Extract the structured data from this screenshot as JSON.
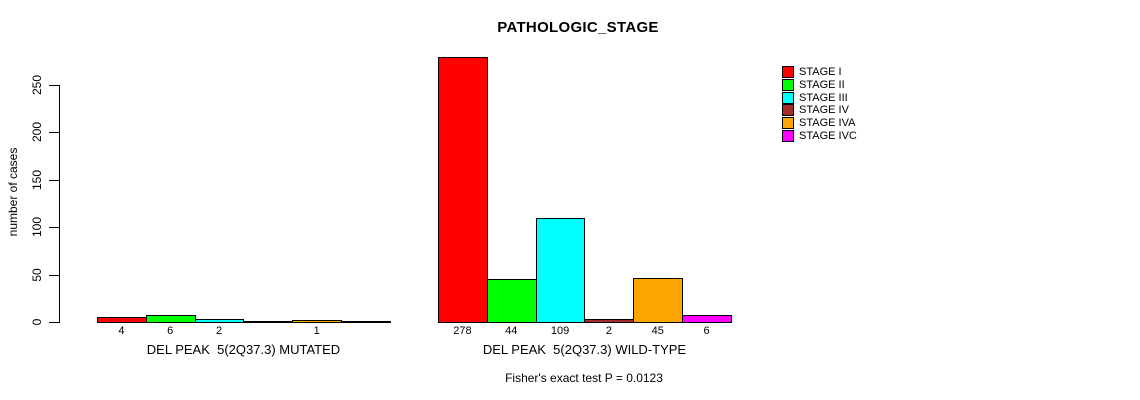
{
  "chart_data": {
    "type": "bar",
    "title": "PATHOLOGIC_STAGE",
    "ylabel": "number of cases",
    "yticks": [
      0,
      50,
      100,
      150,
      200,
      250
    ],
    "ylim": [
      0,
      280
    ],
    "grid": false,
    "legend_position": "right",
    "categories": [
      "STAGE I",
      "STAGE II",
      "STAGE III",
      "STAGE IV",
      "STAGE IVA",
      "STAGE IVC"
    ],
    "series_colors": [
      "#FF0000",
      "#00FF00",
      "#00FFFF",
      "#A52A2A",
      "#FFA500",
      "#FF00FF"
    ],
    "groups": [
      {
        "label": "DEL PEAK  5(2Q37.3) MUTATED",
        "values": [
          4,
          6,
          2,
          0,
          1,
          0
        ],
        "bar_count_labels": [
          "4",
          "6",
          "2",
          "",
          "1",
          ""
        ]
      },
      {
        "label": "DEL PEAK  5(2Q37.3) WILD-TYPE",
        "values": [
          278,
          44,
          109,
          2,
          45,
          6
        ],
        "bar_count_labels": [
          "278",
          "44",
          "109",
          "2",
          "45",
          "6"
        ]
      }
    ],
    "legend": [
      {
        "label": "STAGE I",
        "color": "#FF0000"
      },
      {
        "label": "STAGE II",
        "color": "#00FF00"
      },
      {
        "label": "STAGE III",
        "color": "#00FFFF"
      },
      {
        "label": "STAGE IV",
        "color": "#A52A2A"
      },
      {
        "label": "STAGE IVA",
        "color": "#FFA500"
      },
      {
        "label": "STAGE IVC",
        "color": "#FF00FF"
      }
    ],
    "annotation": "Fisher's exact test P = 0.0123"
  },
  "colors": {
    "background": "#FFFFFF",
    "axis": "#000000",
    "text": "#000000"
  }
}
